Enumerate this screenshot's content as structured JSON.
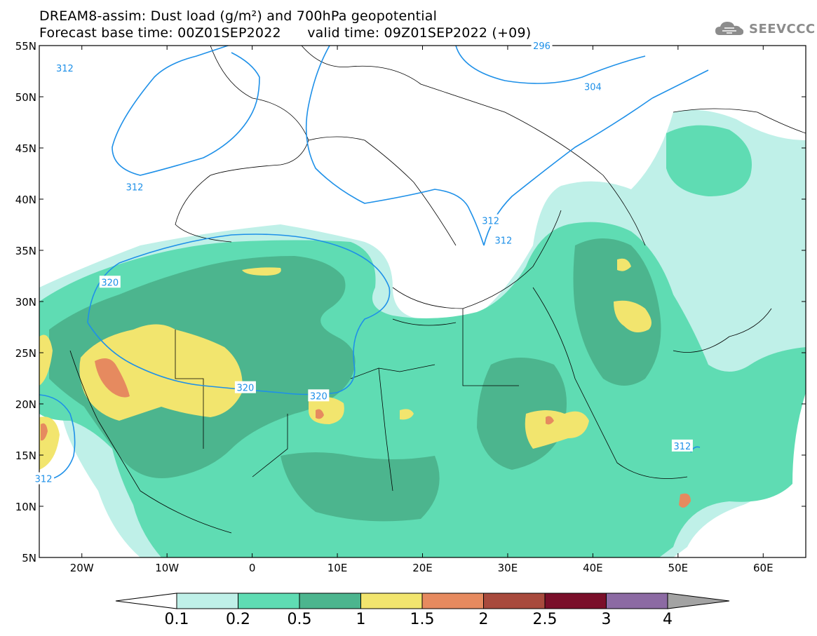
{
  "header": {
    "line1": "DREAM8-assim: Dust load (g/m²) and 700hPa geopotential",
    "line2": "Forecast base time: 00Z01SEP2022      valid time: 09Z01SEP2022 (+09)"
  },
  "logo": {
    "text": "SEEVCCC",
    "icon": "cloud-logo-icon"
  },
  "map": {
    "lon_range": [
      -25,
      65
    ],
    "lat_range": [
      5,
      55
    ],
    "lat_ticks": [
      "5N",
      "10N",
      "15N",
      "20N",
      "25N",
      "30N",
      "35N",
      "40N",
      "45N",
      "50N",
      "55N"
    ],
    "lon_ticks": [
      "20W",
      "10W",
      "0",
      "10E",
      "20E",
      "30E",
      "40E",
      "50E",
      "60E"
    ],
    "contour_labels": [
      {
        "text": "312",
        "lon": -22,
        "lat": 52.8
      },
      {
        "text": "312",
        "lon": -13.8,
        "lat": 41.2
      },
      {
        "text": "296",
        "lon": 34,
        "lat": 55
      },
      {
        "text": "304",
        "lon": 40,
        "lat": 51
      },
      {
        "text": "312",
        "lon": 28,
        "lat": 37.9
      },
      {
        "text": "312",
        "lon": 29.5,
        "lat": 36
      },
      {
        "text": "320",
        "lon": -16.7,
        "lat": 31.9
      },
      {
        "text": "320",
        "lon": -0.8,
        "lat": 21.6
      },
      {
        "text": "320",
        "lon": 7.8,
        "lat": 20.8
      },
      {
        "text": "312",
        "lon": 50.5,
        "lat": 15.9
      },
      {
        "text": "312",
        "lon": -24.5,
        "lat": 12.7
      }
    ]
  },
  "colorbar": {
    "labels": [
      "0.1",
      "0.2",
      "0.5",
      "1",
      "1.5",
      "2",
      "2.5",
      "3",
      "4"
    ],
    "colors": [
      "#bff0e8",
      "#5fdcb3",
      "#4cb58e",
      "#f2e56e",
      "#e68a5f",
      "#a84a3d",
      "#7a0f2a",
      "#8c6aa3",
      "#a3a3a3"
    ],
    "lower_extension_color": "#ffffff"
  },
  "colors": {
    "contour": "#1e90e8",
    "dust_0_1": "#bff0e8",
    "dust_0_2": "#5fdcb3",
    "dust_0_5": "#4cb58e",
    "dust_1": "#f2e56e",
    "dust_1_5": "#e68a5f"
  }
}
